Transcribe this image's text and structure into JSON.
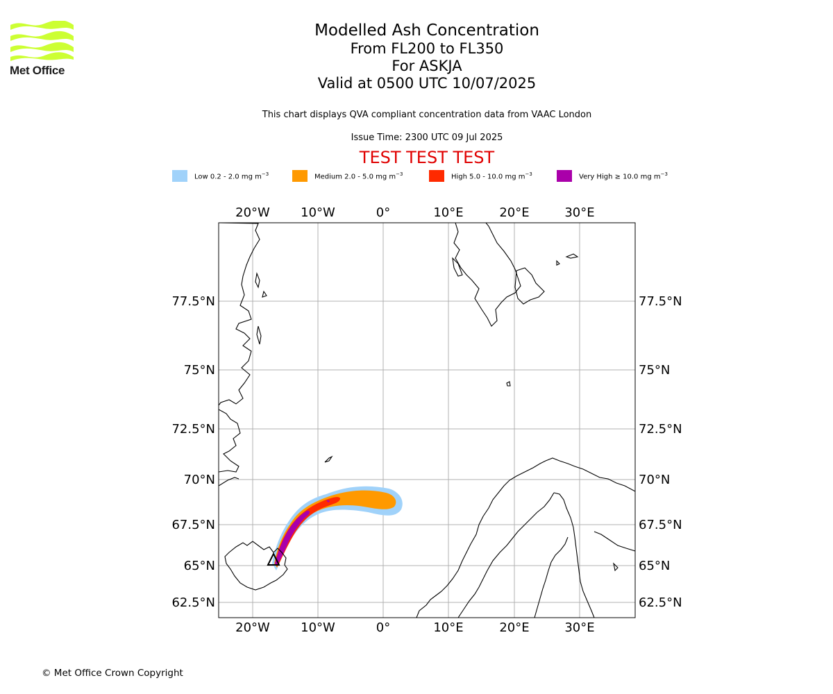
{
  "branding": {
    "logo_name": "Met Office",
    "logo_color": "#ccff33"
  },
  "header": {
    "title": "Modelled Ash Concentration",
    "flight_levels": "From FL200 to FL350",
    "volcano": "For ASKJA",
    "valid_time": "Valid at 0500 UTC 10/07/2025",
    "description": "This chart displays QVA compliant concentration data from VAAC London",
    "issue_time": "Issue Time: 2300 UTC 09 Jul 2025",
    "test_banner": "TEST TEST TEST",
    "test_banner_color": "#e00000"
  },
  "legend": [
    {
      "label": "Low 0.2 - 2.0 mg m",
      "color": "#a0d2fa",
      "level": "low"
    },
    {
      "label": "Medium 2.0 - 5.0 mg m",
      "color": "#ff9900",
      "level": "medium"
    },
    {
      "label": "High 5.0 - 10.0 mg m",
      "color": "#ff2a00",
      "level": "high"
    },
    {
      "label": "Very High  ≥  10.0 mg m",
      "color": "#aa00aa",
      "level": "very-high"
    }
  ],
  "legend_unit_exponent": "−3",
  "map": {
    "lon_ticks": [
      "20°W",
      "10°W",
      "0°",
      "10°E",
      "20°E",
      "30°E"
    ],
    "lat_ticks": [
      "77.5°N",
      "75°N",
      "72.5°N",
      "70°N",
      "67.5°N",
      "65°N",
      "62.5°N"
    ],
    "volcano_symbol": "volcano-triangle"
  },
  "footer": {
    "copyright": "© Met Office Crown Copyright"
  }
}
